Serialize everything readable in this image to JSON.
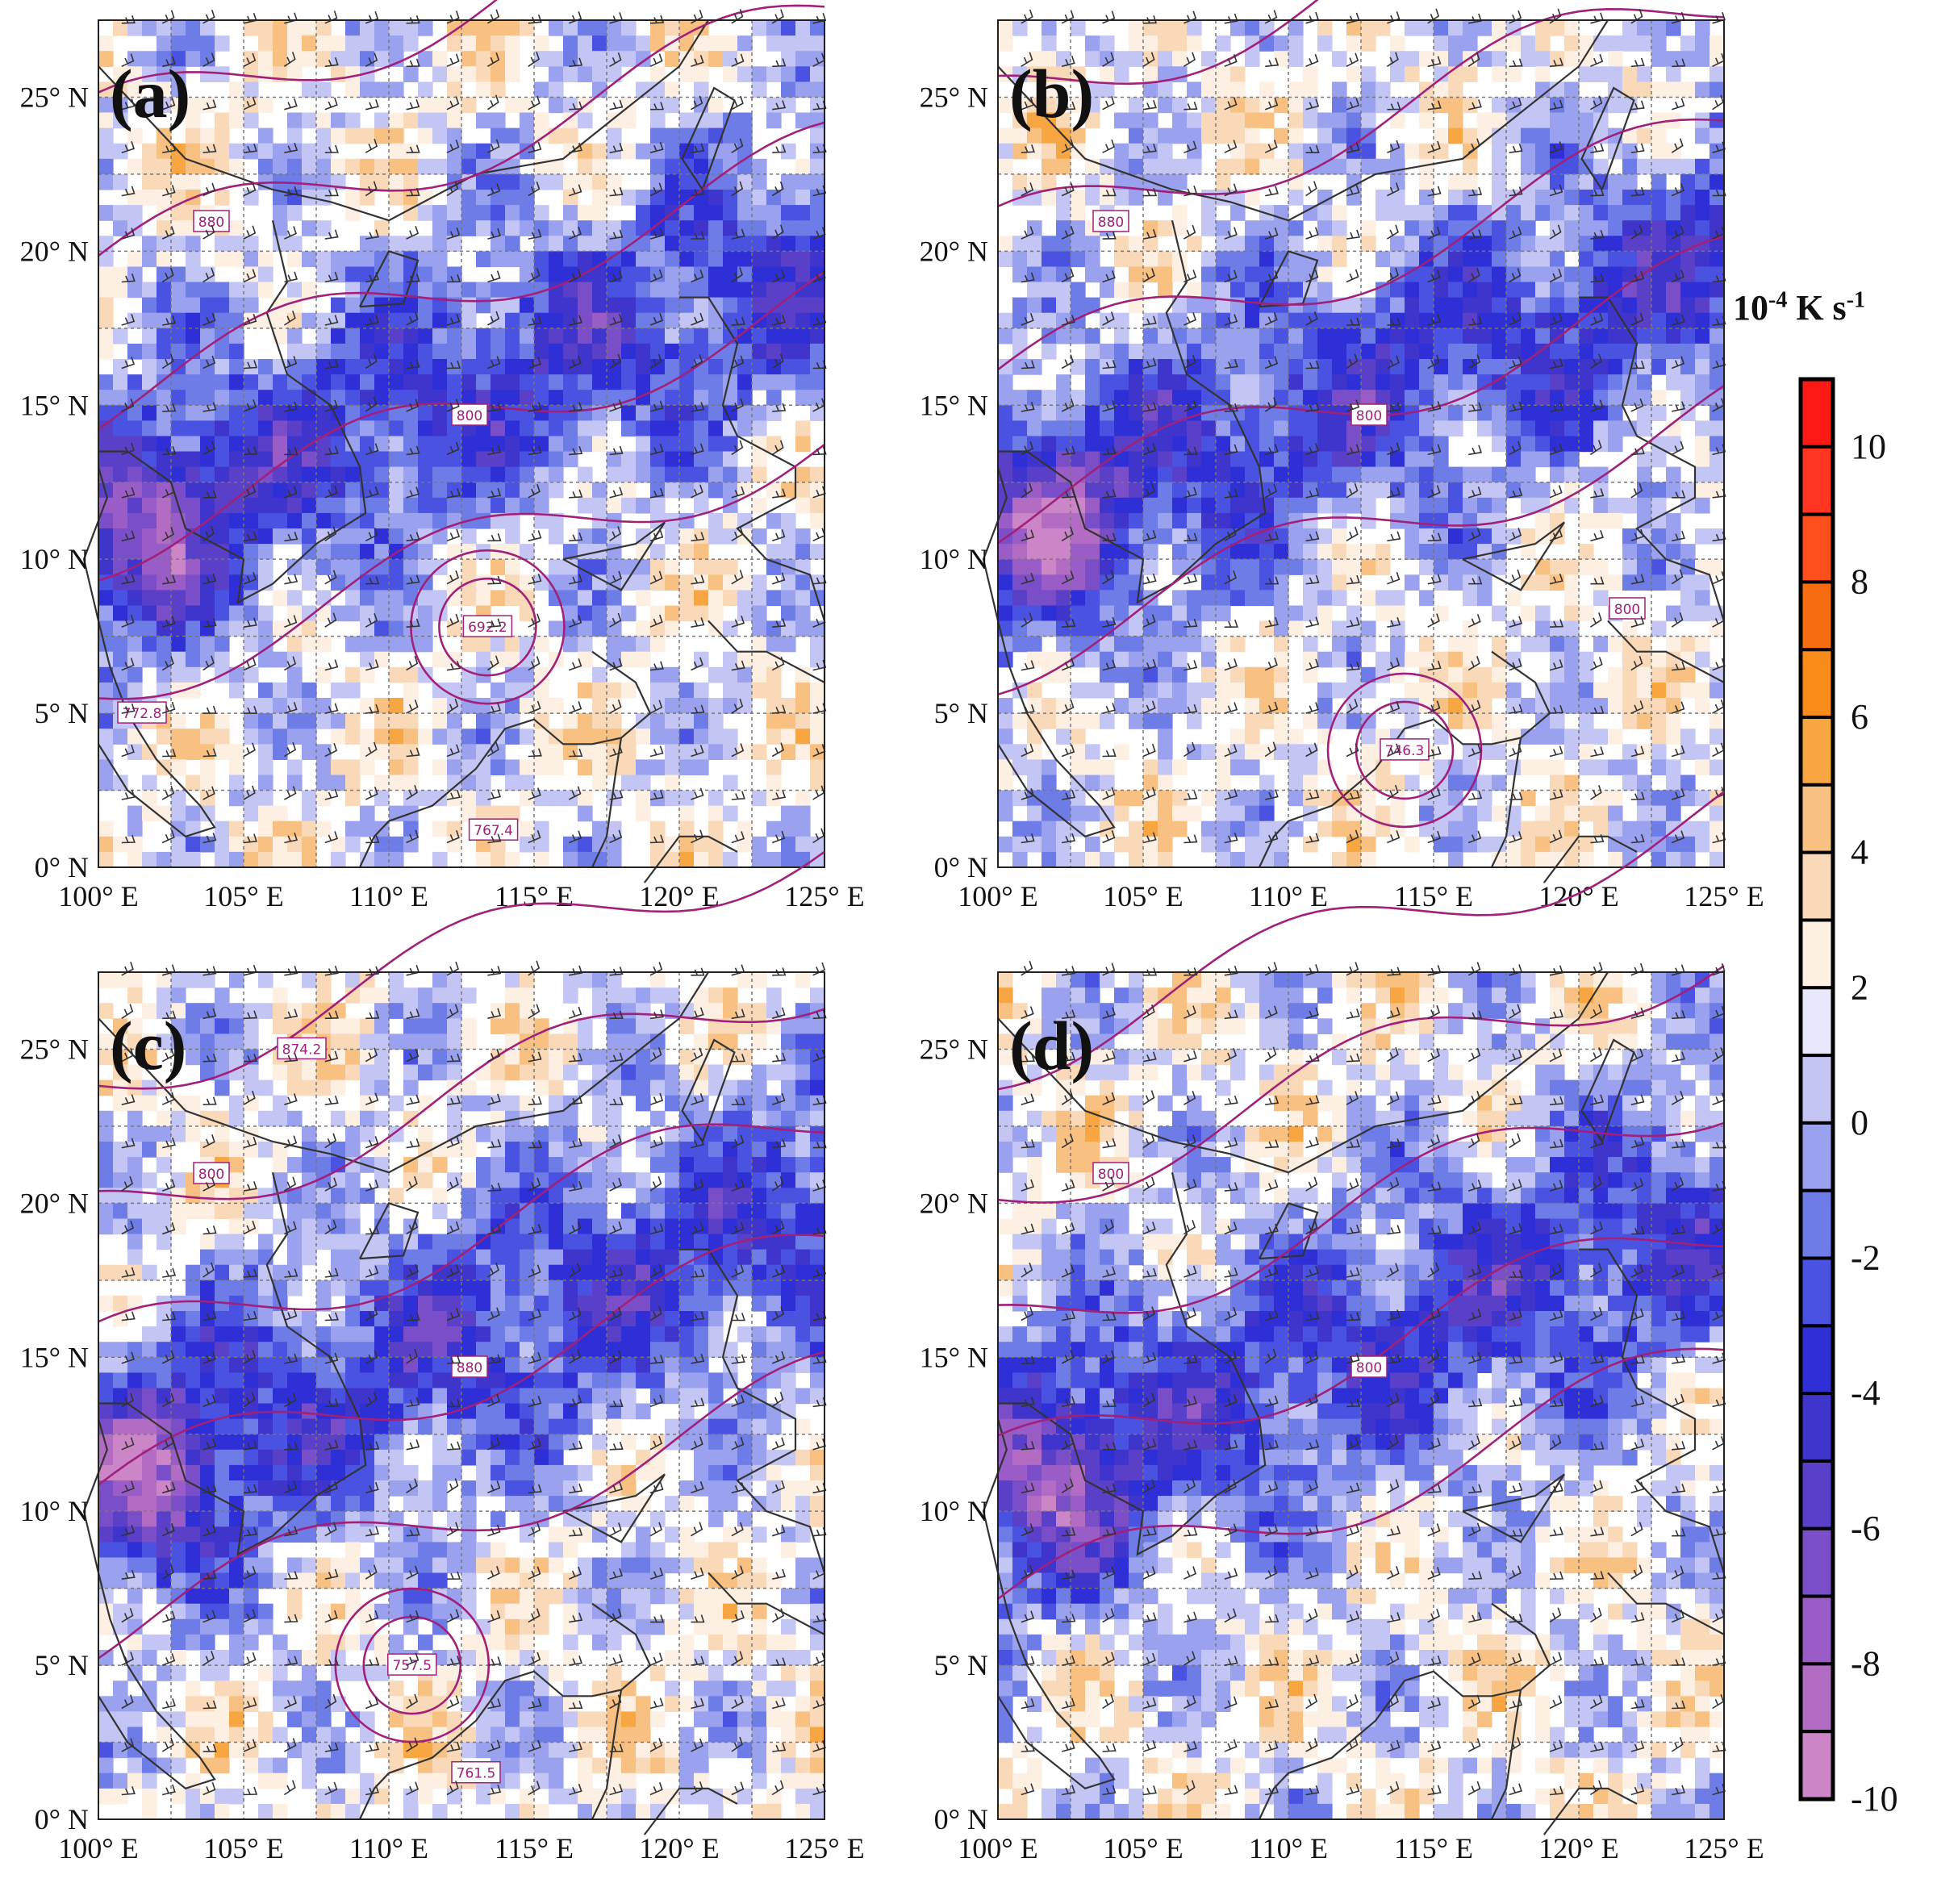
{
  "panels": [
    {
      "label": "(a)",
      "highs": [
        {
          "text": "772.8",
          "lon": 101.5,
          "lat": 5.0
        }
      ],
      "lows": [
        {
          "text": "692.2",
          "lon": 113.4,
          "lat": 7.8
        },
        {
          "text": "767.4",
          "lon": 113.6,
          "lat": 1.2
        }
      ],
      "contours": [
        "880",
        "800"
      ]
    },
    {
      "label": "(b)",
      "highs": [],
      "lows": [
        {
          "text": "746.3",
          "lon": 114.0,
          "lat": 3.8
        }
      ],
      "contours": [
        "880",
        "800",
        "800"
      ]
    },
    {
      "label": "(c)",
      "highs": [
        {
          "text": "874.2",
          "lon": 107.0,
          "lat": 25.0
        },
        {
          "text": "761.5",
          "lon": 113.0,
          "lat": 1.5
        }
      ],
      "lows": [
        {
          "text": "757.5",
          "lon": 110.8,
          "lat": 5.0
        }
      ],
      "contours": [
        "800",
        "880"
      ]
    },
    {
      "label": "(d)",
      "highs": [],
      "lows": [],
      "contours": [
        "800",
        "800"
      ]
    }
  ],
  "axes": {
    "x_ticks": [
      "100° E",
      "105° E",
      "110° E",
      "115° E",
      "120° E",
      "125° E"
    ],
    "y_ticks": [
      "0° N",
      "5° N",
      "10° N",
      "15° N",
      "20° N",
      "25° N"
    ],
    "lon_range": [
      100,
      125
    ],
    "lat_range": [
      0,
      27.5
    ]
  },
  "colorbar": {
    "unit_base": "10",
    "unit_exp": "-4",
    "unit_rest": " K s",
    "unit_exp2": "-1",
    "labels": [
      "10",
      "8",
      "6",
      "4",
      "2",
      "0",
      "-2",
      "-4",
      "-6",
      "-8",
      "-10"
    ],
    "colors": [
      "#fe1a14",
      "#fe3520",
      "#fe4e1c",
      "#f76c10",
      "#f98b18",
      "#f7a642",
      "#f8c081",
      "#fad9b8",
      "#fdf0e3",
      "#e7e8fb",
      "#c3c6f5",
      "#9aa2ef",
      "#6e7ce8",
      "#4a52e2",
      "#2f2fd8",
      "#3f35cc",
      "#5a40c8",
      "#7a4ec8",
      "#9a5cc6",
      "#b36cc4",
      "#cc85c6"
    ]
  }
}
